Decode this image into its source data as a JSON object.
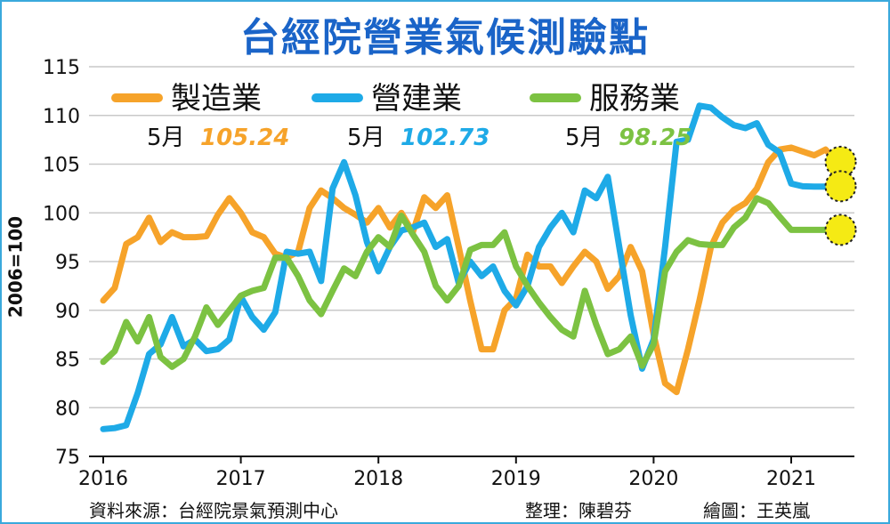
{
  "chart_data": {
    "type": "line",
    "title": "台經院營業氣候測驗點",
    "ylabel": "2006=100",
    "ylim": [
      75,
      115
    ],
    "yticks": [
      75,
      80,
      85,
      90,
      95,
      100,
      105,
      110,
      115
    ],
    "xticks": [
      "2016",
      "2017",
      "2018",
      "2019",
      "2020",
      "2021"
    ],
    "grid": "horizontal",
    "legend_position": "top-left",
    "series": [
      {
        "name": "製造業",
        "color": "#f6a32a",
        "latest_label": "5月",
        "latest_value": "105.24",
        "x": [
          "2016-01",
          "2016-02",
          "2016-03",
          "2016-04",
          "2016-05",
          "2016-06",
          "2016-07",
          "2016-08",
          "2016-09",
          "2016-10",
          "2016-11",
          "2016-12",
          "2017-01",
          "2017-02",
          "2017-03",
          "2017-04",
          "2017-05",
          "2017-06",
          "2017-07",
          "2017-08",
          "2017-09",
          "2017-10",
          "2017-11",
          "2017-12",
          "2018-01",
          "2018-02",
          "2018-03",
          "2018-04",
          "2018-05",
          "2018-06",
          "2018-07",
          "2018-08",
          "2018-09",
          "2018-10",
          "2018-11",
          "2018-12",
          "2019-01",
          "2019-02",
          "2019-03",
          "2019-04",
          "2019-05",
          "2019-06",
          "2019-07",
          "2019-08",
          "2019-09",
          "2019-10",
          "2019-11",
          "2019-12",
          "2020-01",
          "2020-02",
          "2020-03",
          "2020-04",
          "2020-05",
          "2020-06",
          "2020-07",
          "2020-08",
          "2020-09",
          "2020-10",
          "2020-11",
          "2020-12",
          "2021-01",
          "2021-02",
          "2021-03",
          "2021-04",
          "2021-05"
        ],
        "values": [
          91.0,
          92.3,
          96.8,
          97.5,
          99.5,
          97.0,
          98.0,
          97.5,
          97.5,
          97.6,
          99.8,
          101.5,
          100.0,
          98.0,
          97.5,
          95.8,
          95.4,
          96.0,
          100.5,
          102.3,
          101.5,
          100.5,
          99.8,
          99.0,
          100.5,
          98.5,
          100.0,
          98.0,
          101.6,
          100.5,
          101.8,
          96.5,
          91.0,
          86.0,
          86.0,
          90.0,
          91.2,
          95.7,
          94.5,
          94.5,
          92.8,
          94.5,
          96.0,
          95.0,
          92.2,
          93.5,
          96.5,
          94.0,
          87.5,
          82.5,
          81.6,
          86.0,
          91.0,
          96.5,
          99.0,
          100.3,
          101.0,
          102.5,
          105.2,
          106.5,
          106.7,
          106.3,
          105.9,
          106.5,
          105.24
        ]
      },
      {
        "name": "營建業",
        "color": "#1eaae7",
        "latest_label": "5月",
        "latest_value": "102.73",
        "x": [
          "2016-01",
          "2016-02",
          "2016-03",
          "2016-04",
          "2016-05",
          "2016-06",
          "2016-07",
          "2016-08",
          "2016-09",
          "2016-10",
          "2016-11",
          "2016-12",
          "2017-01",
          "2017-02",
          "2017-03",
          "2017-04",
          "2017-05",
          "2017-06",
          "2017-07",
          "2017-08",
          "2017-09",
          "2017-10",
          "2017-11",
          "2017-12",
          "2018-01",
          "2018-02",
          "2018-03",
          "2018-04",
          "2018-05",
          "2018-06",
          "2018-07",
          "2018-08",
          "2018-09",
          "2018-10",
          "2018-11",
          "2018-12",
          "2019-01",
          "2019-02",
          "2019-03",
          "2019-04",
          "2019-05",
          "2019-06",
          "2019-07",
          "2019-08",
          "2019-09",
          "2019-10",
          "2019-11",
          "2019-12",
          "2020-01",
          "2020-02",
          "2020-03",
          "2020-04",
          "2020-05",
          "2020-06",
          "2020-07",
          "2020-08",
          "2020-09",
          "2020-10",
          "2020-11",
          "2020-12",
          "2021-01",
          "2021-02",
          "2021-03",
          "2021-04",
          "2021-05"
        ],
        "values": [
          77.8,
          77.9,
          78.2,
          81.5,
          85.5,
          86.5,
          89.3,
          86.3,
          87.0,
          85.8,
          86.0,
          87.0,
          91.4,
          89.3,
          88.0,
          89.8,
          96.0,
          95.8,
          96.0,
          93.0,
          102.5,
          105.2,
          101.8,
          97.0,
          94.0,
          96.5,
          98.2,
          98.5,
          99.0,
          96.5,
          97.3,
          92.8,
          95.0,
          93.5,
          94.5,
          92.0,
          90.5,
          92.5,
          96.5,
          98.5,
          100.0,
          98.0,
          102.3,
          101.5,
          103.7,
          96.5,
          89.5,
          84.0,
          87.0,
          96.5,
          107.3,
          107.5,
          111.0,
          110.8,
          109.8,
          109.0,
          108.7,
          109.2,
          107.0,
          106.2,
          103.0,
          102.73,
          102.7,
          102.7,
          102.73
        ]
      },
      {
        "name": "服務業",
        "color": "#7cc242",
        "latest_label": "5月",
        "latest_value": "98.25",
        "x": [
          "2016-01",
          "2016-02",
          "2016-03",
          "2016-04",
          "2016-05",
          "2016-06",
          "2016-07",
          "2016-08",
          "2016-09",
          "2016-10",
          "2016-11",
          "2016-12",
          "2017-01",
          "2017-02",
          "2017-03",
          "2017-04",
          "2017-05",
          "2017-06",
          "2017-07",
          "2017-08",
          "2017-09",
          "2017-10",
          "2017-11",
          "2017-12",
          "2018-01",
          "2018-02",
          "2018-03",
          "2018-04",
          "2018-05",
          "2018-06",
          "2018-07",
          "2018-08",
          "2018-09",
          "2018-10",
          "2018-11",
          "2018-12",
          "2019-01",
          "2019-02",
          "2019-03",
          "2019-04",
          "2019-05",
          "2019-06",
          "2019-07",
          "2019-08",
          "2019-09",
          "2019-10",
          "2019-11",
          "2019-12",
          "2020-01",
          "2020-02",
          "2020-03",
          "2020-04",
          "2020-05",
          "2020-06",
          "2020-07",
          "2020-08",
          "2020-09",
          "2020-10",
          "2020-11",
          "2020-12",
          "2021-01",
          "2021-02",
          "2021-03",
          "2021-04",
          "2021-05"
        ],
        "values": [
          84.7,
          85.8,
          88.8,
          86.8,
          89.3,
          85.2,
          84.2,
          85.0,
          87.3,
          90.3,
          88.5,
          90.0,
          91.5,
          92.0,
          92.3,
          95.4,
          95.4,
          93.5,
          91.0,
          89.6,
          92.0,
          94.3,
          93.5,
          96.0,
          97.5,
          96.5,
          99.7,
          97.8,
          96.0,
          92.5,
          91.0,
          92.5,
          96.2,
          96.7,
          96.7,
          98.0,
          94.5,
          92.5,
          90.8,
          89.3,
          88.0,
          87.3,
          92.0,
          88.5,
          85.5,
          86.0,
          87.3,
          84.3,
          86.5,
          94.0,
          96.0,
          97.2,
          96.8,
          96.7,
          96.7,
          98.5,
          99.5,
          101.5,
          101.0,
          99.6,
          98.25,
          98.25,
          98.25,
          98.25,
          98.25
        ]
      }
    ]
  },
  "footer": {
    "source": "資料來源：台經院景氣預測中心",
    "editor": "整理：陳碧芬",
    "illustrator": "繪圖：王英嵐"
  }
}
